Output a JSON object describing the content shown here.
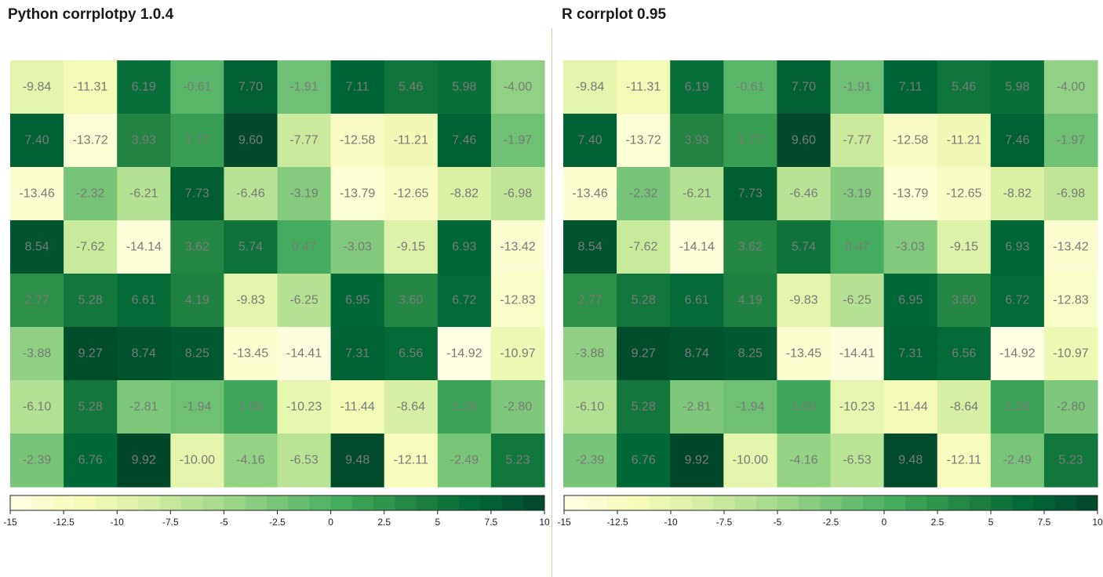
{
  "panels": [
    {
      "title": "Python corrplotpy 1.0.4"
    },
    {
      "title": "R corrplot 0.95"
    }
  ],
  "chart_data": {
    "type": "heatmap",
    "rows": 8,
    "cols": 10,
    "values": [
      [
        -9.84,
        -11.31,
        6.19,
        -0.61,
        7.7,
        -1.91,
        7.11,
        5.46,
        5.98,
        -4.0
      ],
      [
        7.4,
        -13.72,
        3.93,
        1.77,
        9.6,
        -7.77,
        -12.58,
        -11.21,
        7.46,
        -1.97
      ],
      [
        -13.46,
        -2.32,
        -6.21,
        7.73,
        -6.46,
        -3.19,
        -13.79,
        -12.65,
        -8.82,
        -6.98
      ],
      [
        8.54,
        -7.62,
        -14.14,
        3.62,
        5.74,
        0.47,
        -3.03,
        -9.15,
        6.93,
        -13.42
      ],
      [
        2.77,
        5.28,
        6.61,
        4.19,
        -9.83,
        -6.25,
        6.95,
        3.6,
        6.72,
        -12.83
      ],
      [
        -3.88,
        9.27,
        8.74,
        8.25,
        -13.45,
        -14.41,
        7.31,
        6.56,
        -14.92,
        -10.97
      ],
      [
        -6.1,
        5.28,
        -2.81,
        -1.94,
        1.0,
        -10.23,
        -11.44,
        -8.64,
        1.28,
        -2.8
      ],
      [
        -2.39,
        6.76,
        9.92,
        -10.0,
        -4.16,
        -6.53,
        9.48,
        -12.11,
        -2.49,
        5.23
      ]
    ],
    "labels": [
      [
        "-9.84",
        "-11.31",
        "6.19",
        "-0.61",
        "7.70",
        "-1.91",
        "7.11",
        "5.46",
        "5.98",
        "-4.00"
      ],
      [
        "7.40",
        "-13.72",
        "3.93",
        "1.77",
        "9.60",
        "-7.77",
        "-12.58",
        "-11.21",
        "7.46",
        "-1.97"
      ],
      [
        "-13.46",
        "-2.32",
        "-6.21",
        "7.73",
        "-6.46",
        "-3.19",
        "-13.79",
        "-12.65",
        "-8.82",
        "-6.98"
      ],
      [
        "8.54",
        "-7.62",
        "-14.14",
        "3.62",
        "5.74",
        "0.47",
        "-3.03",
        "-9.15",
        "6.93",
        "-13.42"
      ],
      [
        "2.77",
        "5.28",
        "6.61",
        "4.19",
        "-9.83",
        "-6.25",
        "6.95",
        "3.60",
        "6.72",
        "-12.83"
      ],
      [
        "-3.88",
        "9.27",
        "8.74",
        "8.25",
        "-13.45",
        "-14.41",
        "7.31",
        "6.56",
        "-14.92",
        "-10.97"
      ],
      [
        "-6.10",
        "5.28",
        "-2.81",
        "-1.94",
        "1.00",
        "-10.23",
        "-11.44",
        "-8.64",
        "1.28",
        "-2.80"
      ],
      [
        "-2.39",
        "6.76",
        "9.92",
        "-10.00",
        "-4.16",
        "-6.53",
        "9.48",
        "-12.11",
        "-2.49",
        "5.23"
      ]
    ],
    "colorbar": {
      "range": [
        -15,
        10
      ],
      "ticks": [
        -15,
        -12.5,
        -10,
        -7.5,
        -5,
        -2.5,
        0,
        2.5,
        5,
        7.5,
        10
      ],
      "tick_labels": [
        "-15",
        "-12.5",
        "-10",
        "-7.5",
        "-5",
        "-2.5",
        "0",
        "2.5",
        "5",
        "7.5",
        "10"
      ],
      "bins": 25
    },
    "colormap": [
      "#ffffe5",
      "#f7fcb9",
      "#d9f0a3",
      "#addd8e",
      "#78c679",
      "#41ab5d",
      "#238443",
      "#006837",
      "#004529"
    ],
    "label_color": "#7a7a7a"
  }
}
